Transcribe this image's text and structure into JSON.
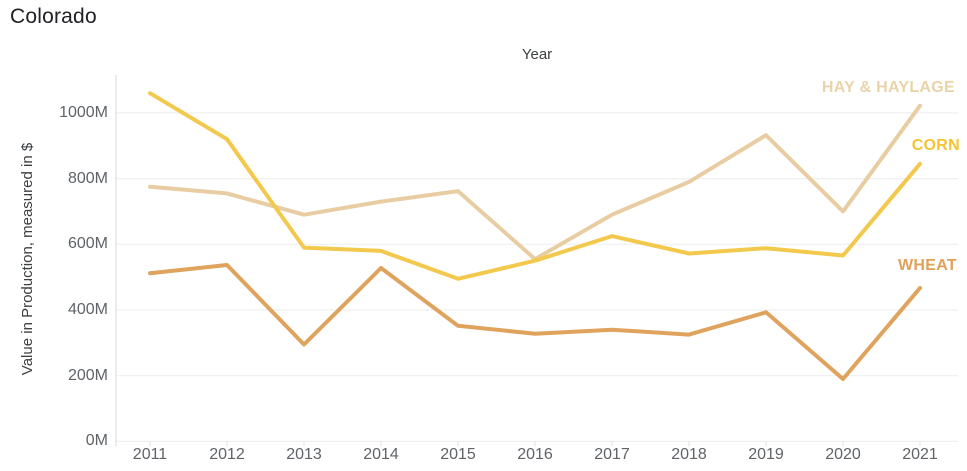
{
  "page": {
    "title": "Colorado"
  },
  "chart_data": {
    "type": "line",
    "title": "Colorado",
    "xlabel": "Year",
    "ylabel": "Value in Production, measured in $",
    "x": [
      "2011",
      "2012",
      "2013",
      "2014",
      "2015",
      "2016",
      "2017",
      "2018",
      "2019",
      "2020",
      "2021"
    ],
    "series": [
      {
        "name": "HAY & HAYLAGE",
        "line_color": "#E8CDA3",
        "label_color": "#EBD3A9",
        "values": [
          775,
          755,
          690,
          730,
          762,
          555,
          690,
          790,
          932,
          700,
          1022
        ]
      },
      {
        "name": "WHEAT",
        "line_color": "#DFA35E",
        "label_color": "#E1A159",
        "values": [
          512,
          537,
          295,
          528,
          352,
          328,
          340,
          325,
          393,
          190,
          467
        ]
      },
      {
        "name": "CORN",
        "line_color": "#F2C94C",
        "label_color": "#F4C431",
        "values": [
          1060,
          920,
          590,
          580,
          495,
          550,
          625,
          572,
          588,
          566,
          845
        ]
      }
    ],
    "y_ticks": [
      {
        "label": "0M",
        "value": 0
      },
      {
        "label": "200M",
        "value": 200
      },
      {
        "label": "400M",
        "value": 400
      },
      {
        "label": "600M",
        "value": 600
      },
      {
        "label": "800M",
        "value": 800
      },
      {
        "label": "1000M",
        "value": 1000
      }
    ],
    "ylim": [
      0,
      1115
    ],
    "grid": "horizontal",
    "legend_position": "inline-right",
    "unit": "M",
    "colors": {
      "title_text": "#202124",
      "axis_title_text": "#3c4043",
      "tick_text": "#5f6368",
      "gridline": "#efefef",
      "axis_line": "#e0e0e0"
    }
  }
}
